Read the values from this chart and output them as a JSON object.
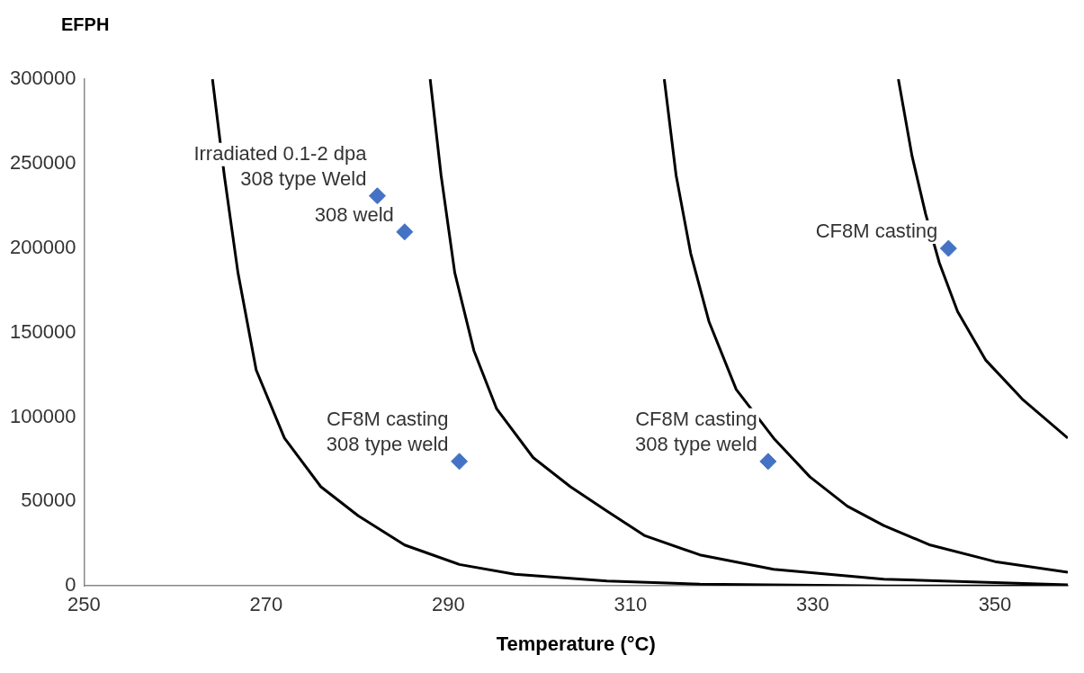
{
  "chart_data": {
    "type": "line",
    "xlabel": "Temperature (°C)",
    "ylabel": "EFPH",
    "xlim": [
      250,
      358
    ],
    "ylim": [
      0,
      300000
    ],
    "xticks": [
      250,
      270,
      290,
      310,
      330,
      350
    ],
    "yticks": [
      0,
      50000,
      100000,
      150000,
      200000,
      250000,
      300000
    ],
    "grid": false,
    "legend": false,
    "series": [
      {
        "type": "line",
        "color": "#000000",
        "marker": "none",
        "x": [
          264.1,
          265.4,
          266.9,
          268.9,
          272.0,
          276.0,
          280.1,
          285.2,
          291.2,
          297.3,
          307.4,
          317.6,
          338,
          358
        ],
        "values": [
          300000,
          243000,
          185400,
          127800,
          87500,
          58700,
          41500,
          24200,
          12700,
          6900,
          2900,
          1000,
          0,
          0
        ]
      },
      {
        "type": "line",
        "color": "#000000",
        "marker": "none",
        "x": [
          288.0,
          289.2,
          290.7,
          292.8,
          295.3,
          299.3,
          303.4,
          307.4,
          311.5,
          317.6,
          325.7,
          337.8,
          358
        ],
        "values": [
          300000,
          243000,
          185400,
          139300,
          104800,
          76000,
          58700,
          44300,
          29900,
          18400,
          9800,
          4000,
          600
        ]
      },
      {
        "type": "line",
        "color": "#000000",
        "marker": "none",
        "x": [
          313.7,
          315.0,
          316.6,
          318.6,
          321.6,
          325.7,
          329.7,
          333.8,
          337.8,
          342.9,
          350,
          358
        ],
        "values": [
          300000,
          243000,
          196900,
          156600,
          116300,
          87500,
          64500,
          47200,
          35700,
          24200,
          14400,
          8100
        ]
      },
      {
        "type": "line",
        "color": "#000000",
        "marker": "none",
        "x": [
          339.4,
          340.9,
          342.4,
          343.9,
          345.9,
          349.0,
          353.0,
          358
        ],
        "values": [
          300000,
          254500,
          220000,
          191200,
          162400,
          133600,
          110600,
          87500
        ]
      },
      {
        "type": "scatter",
        "color": "#4472c4",
        "marker": "diamond",
        "x": [
          282.2,
          285.2,
          291.2,
          325.1,
          344.9
        ],
        "values": [
          230900,
          209600,
          73700,
          73700,
          199800
        ]
      }
    ],
    "annotations": [
      {
        "text": "Irradiated 0.1-2 dpa\n308 type Weld",
        "x": 282.2,
        "y": 230900
      },
      {
        "text": "308 weld",
        "x": 285.2,
        "y": 209600
      },
      {
        "text": "CF8M casting\n308 type weld",
        "x": 291.2,
        "y": 73700
      },
      {
        "text": "CF8M casting\n308 type weld",
        "x": 325.1,
        "y": 73700
      },
      {
        "text": "CF8M casting",
        "x": 344.9,
        "y": 199800
      }
    ]
  }
}
